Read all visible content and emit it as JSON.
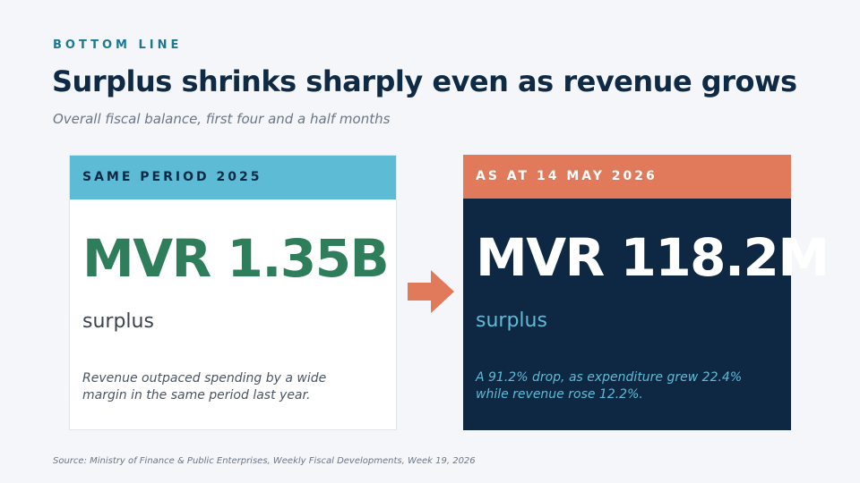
{
  "eyebrow": "BOTTOM LINE",
  "title": "Surplus shrinks sharply even as revenue grows",
  "subtitle": "Overall fiscal balance, first four and a half months",
  "cards": {
    "previous": {
      "header": "SAME PERIOD 2025",
      "value": "MVR 1.35B",
      "label": "surplus",
      "note": "Revenue outpaced spending by a wide margin in the same period last year."
    },
    "current": {
      "header": "AS AT 14 MAY 2026",
      "value": "MVR 118.2M",
      "label": "surplus",
      "note": "A 91.2% drop, as expenditure grew 22.4% while revenue rose 12.2%."
    }
  },
  "arrow_icon": "arrow-right-icon",
  "colors": {
    "accent_teal": "#5ebbd6",
    "accent_coral": "#e07a5a",
    "navy": "#0e2844",
    "green": "#2e7d5b"
  },
  "source": "Source: Ministry of Finance & Public Enterprises, Weekly Fiscal Developments, Week 19, 2026"
}
